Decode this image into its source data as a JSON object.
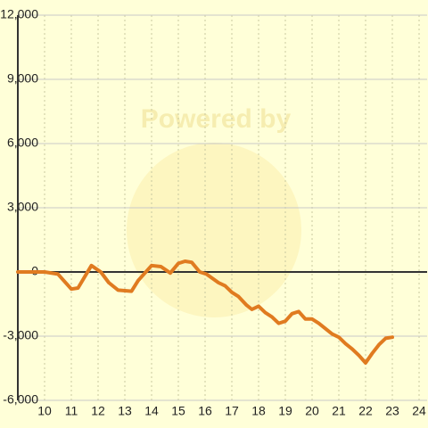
{
  "chart_data": {
    "type": "line",
    "watermark": "Powered by",
    "x": [
      9,
      10,
      10.5,
      11,
      11.25,
      11.75,
      12.1,
      12.4,
      12.75,
      13.25,
      13.5,
      14,
      14.35,
      14.7,
      15,
      15.25,
      15.5,
      15.8,
      16.05,
      16.5,
      16.75,
      17,
      17.25,
      17.55,
      17.75,
      18,
      18.25,
      18.5,
      18.75,
      19,
      19.25,
      19.5,
      19.75,
      20,
      20.25,
      20.5,
      20.75,
      21,
      21.25,
      21.5,
      21.75,
      22,
      22.25,
      22.5,
      22.75,
      23
    ],
    "series": [
      {
        "color": "#e07b20",
        "values": [
          0,
          0,
          -100,
          -800,
          -750,
          300,
          0,
          -500,
          -850,
          -900,
          -400,
          300,
          250,
          -50,
          400,
          500,
          450,
          0,
          -100,
          -500,
          -650,
          -950,
          -1150,
          -1550,
          -1750,
          -1600,
          -1900,
          -2100,
          -2400,
          -2300,
          -1950,
          -1850,
          -2200,
          -2200,
          -2400,
          -2650,
          -2900,
          -3050,
          -3350,
          -3600,
          -3900,
          -4250,
          -3800,
          -3400,
          -3100,
          -3050
        ]
      }
    ],
    "xlim": [
      9,
      24.3
    ],
    "xticks": [
      10,
      11,
      12,
      13,
      14,
      15,
      16,
      17,
      18,
      19,
      20,
      21,
      22,
      23,
      24
    ],
    "ylim": [
      -6000,
      12000
    ],
    "yticks": [
      {
        "value": -6000,
        "label": "-6,000"
      },
      {
        "value": -3000,
        "label": "-3,000"
      },
      0,
      {
        "value": 3000,
        "label": "3,000"
      },
      {
        "value": 6000,
        "label": "6,000"
      },
      {
        "value": 9000,
        "label": "9,000"
      },
      {
        "value": 12000,
        "label": "12,000"
      }
    ],
    "grid": true
  }
}
